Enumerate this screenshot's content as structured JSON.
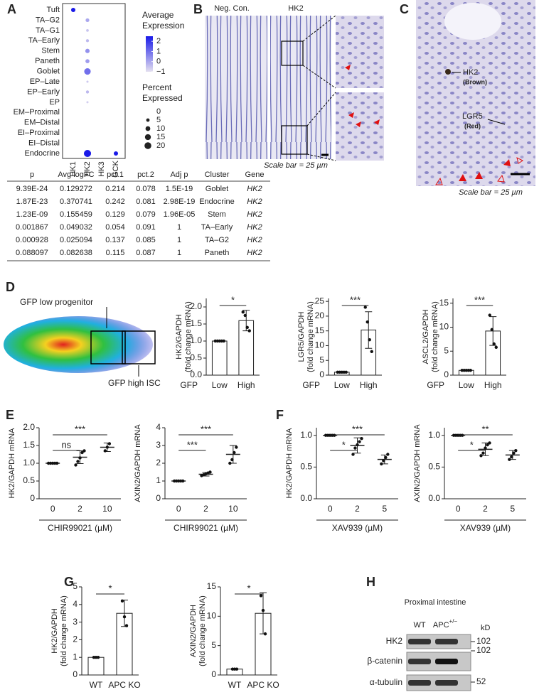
{
  "panels": {
    "A": {
      "letter": "A",
      "dotplot": {
        "clusters": [
          "Tuft",
          "TA–G2",
          "TA–G1",
          "TA–Early",
          "Stem",
          "Paneth",
          "Goblet",
          "EP–Late",
          "EP–Early",
          "EP",
          "EM–Proximal",
          "EM–Distal",
          "EI–Proximal",
          "EI–Distal",
          "Endocrine"
        ],
        "genes": [
          "HK1",
          "HK2",
          "HK3",
          "GCK"
        ],
        "percent": [
          [
            8,
            0,
            0,
            0
          ],
          [
            0,
            6,
            0,
            0
          ],
          [
            0,
            3,
            0,
            0
          ],
          [
            0,
            4,
            0,
            0
          ],
          [
            0,
            8,
            0,
            0
          ],
          [
            0,
            7,
            0,
            0
          ],
          [
            0,
            18,
            0,
            0
          ],
          [
            0,
            2,
            0,
            0
          ],
          [
            0,
            4,
            0,
            0
          ],
          [
            0,
            2,
            0,
            0
          ],
          [
            0,
            0,
            0,
            0
          ],
          [
            0,
            0,
            0,
            0
          ],
          [
            0,
            0,
            0,
            0
          ],
          [
            0,
            0,
            0,
            0
          ],
          [
            0,
            22,
            0,
            8
          ]
        ],
        "expression": [
          [
            2.5,
            -1,
            -1,
            -1
          ],
          [
            -1,
            0,
            -1,
            -1
          ],
          [
            -1,
            -0.5,
            -1,
            -1
          ],
          [
            -1,
            -0.3,
            -1,
            -1
          ],
          [
            -1,
            0.4,
            -1,
            -1
          ],
          [
            -1,
            0.2,
            -1,
            -1
          ],
          [
            -1,
            1,
            -1,
            -1
          ],
          [
            -1,
            -0.6,
            -1,
            -1
          ],
          [
            -1,
            -0.3,
            -1,
            -1
          ],
          [
            -1,
            -0.7,
            -1,
            -1
          ],
          [
            -1,
            -1,
            -1,
            -1
          ],
          [
            -1,
            -1,
            -1,
            -1
          ],
          [
            -1,
            -1,
            -1,
            -1
          ],
          [
            -1,
            -1,
            -1,
            -1
          ],
          [
            -1,
            2.5,
            -1,
            2.5
          ]
        ],
        "colors": {
          "low": "#e4e0f0",
          "high": "#1a1ae8"
        },
        "expression_title": [
          "Average",
          "Expression"
        ],
        "expression_ticks": [
          2,
          1,
          0,
          {
            "value": -1,
            "label": "−1"
          }
        ],
        "expression_lim": [
          -1,
          2.5
        ],
        "percent_title": [
          "Percent",
          "Expressed"
        ],
        "percent_ticks": [
          0,
          5,
          10,
          15,
          20
        ]
      },
      "table": {
        "header": [
          "p",
          "Avg logFC",
          "pct.1",
          "pct.2",
          "Adj p",
          "Cluster",
          "Gene"
        ],
        "rows": [
          [
            "9.39E-24",
            "0.129272",
            "0.214",
            "0.078",
            "1.5E-19",
            "Goblet",
            "HK2"
          ],
          [
            "1.87E-23",
            "0.370741",
            "0.242",
            "0.081",
            "2.98E-19",
            "Endocrine",
            "HK2"
          ],
          [
            "1.23E-09",
            "0.155459",
            "0.129",
            "0.079",
            "1.96E-05",
            "Stem",
            "HK2"
          ],
          [
            "0.001867",
            "0.049032",
            "0.054",
            "0.091",
            "1",
            "TA–Early",
            "HK2"
          ],
          [
            "0.000928",
            "0.025094",
            "0.137",
            "0.085",
            "1",
            "TA–G2",
            "HK2"
          ],
          [
            "0.088097",
            "0.082638",
            "0.115",
            "0.087",
            "1",
            "Paneth",
            "HK2"
          ]
        ]
      }
    },
    "B": {
      "letter": "B",
      "labels": [
        "Neg. Con.",
        "HK2"
      ],
      "scale": "Scale bar = 25 µm"
    },
    "C": {
      "letter": "C",
      "marker1": "HK2",
      "marker1_note": "(Brown)",
      "marker2": "LGR5",
      "marker2_note": "(Red)",
      "scale": "Scale bar = 25 µm"
    },
    "D": {
      "letter": "D",
      "gate_low": "GFP low progenitor",
      "gate_high": "GFP high ISC",
      "charts": [
        {
          "type": "bar",
          "ylabel": [
            "HK2/GAPDH",
            "(fold change mRNA)"
          ],
          "xprefix": "GFP",
          "categories": [
            "Low",
            "High"
          ],
          "values": [
            1.0,
            1.6
          ],
          "errors": [
            0.02,
            0.3
          ],
          "points": [
            [
              1,
              1,
              1,
              1,
              1
            ],
            [
              1.85,
              1.75,
              1.4,
              1.3
            ]
          ],
          "ylim": [
            0,
            2.25
          ],
          "yticks": [
            {
              "value": 0,
              "label": "0.0"
            },
            0.5,
            {
              "value": 1,
              "label": "1.0"
            },
            1.5,
            {
              "value": 2,
              "label": "2.0"
            }
          ],
          "significance": [
            "*"
          ]
        },
        {
          "type": "bar",
          "ylabel": [
            "LGR5/GAPDH",
            "(fold change mRNA)"
          ],
          "xprefix": "GFP",
          "categories": [
            "Low",
            "High"
          ],
          "values": [
            1.0,
            15.3
          ],
          "errors": [
            0.2,
            6.2
          ],
          "points": [
            [
              1,
              1,
              1,
              1,
              1
            ],
            [
              23,
              18,
              12,
              8
            ]
          ],
          "ylim": [
            0,
            26
          ],
          "yticks": [
            0,
            5,
            10,
            15,
            20,
            25
          ],
          "significance": [
            "***"
          ]
        },
        {
          "type": "bar",
          "ylabel": [
            "ASCL2/GAPDH",
            "(fold change mRNA)"
          ],
          "xprefix": "GFP",
          "categories": [
            "Low",
            "High"
          ],
          "values": [
            1.0,
            9.2
          ],
          "errors": [
            0.1,
            3.0
          ],
          "points": [
            [
              1,
              1,
              1,
              1,
              1
            ],
            [
              12.5,
              9.5,
              6.5,
              5.8
            ]
          ],
          "ylim": [
            0,
            16
          ],
          "yticks": [
            0,
            5,
            10,
            15
          ],
          "significance": [
            "***"
          ]
        }
      ]
    },
    "E": {
      "letter": "E",
      "charts": [
        {
          "type": "dotsd",
          "ylabel": [
            "HK2/GAPDH mRNA"
          ],
          "xlabel": "CHIR99021 (µM)",
          "categories": [
            "0",
            "2",
            "10"
          ],
          "values": [
            1.0,
            1.17,
            1.45
          ],
          "errors": [
            0.01,
            0.18,
            0.12
          ],
          "points": [
            [
              1,
              1,
              1,
              1,
              1
            ],
            [
              0.95,
              1.05,
              1.15,
              1.3,
              1.35
            ],
            [
              1.35,
              1.45,
              1.55
            ]
          ],
          "ylim": [
            0,
            2
          ],
          "yticks": [
            0,
            0.5,
            {
              "value": 1,
              "label": "1.0"
            },
            1.5,
            {
              "value": 2,
              "label": "2.0"
            }
          ],
          "significance": [
            "ns",
            "***"
          ]
        },
        {
          "type": "dotsd",
          "ylabel": [
            "AXIN2/GAPDH mRNA"
          ],
          "xlabel": "CHIR99021 (µM)",
          "categories": [
            "0",
            "2",
            "10"
          ],
          "values": [
            1.0,
            1.38,
            2.5
          ],
          "errors": [
            0.01,
            0.1,
            0.5
          ],
          "points": [
            [
              1,
              1,
              1,
              1,
              1
            ],
            [
              1.3,
              1.35,
              1.4,
              1.45,
              1.5
            ],
            [
              2.0,
              2.2,
              2.6,
              2.9
            ]
          ],
          "ylim": [
            0,
            4
          ],
          "yticks": [
            0,
            1,
            2,
            3,
            4
          ],
          "significance": [
            "***",
            "***"
          ]
        }
      ]
    },
    "F": {
      "letter": "F",
      "charts": [
        {
          "type": "dotsd",
          "ylabel": [
            "HK2/GAPDH mRNA"
          ],
          "xlabel": "XAV939 (µM)",
          "categories": [
            "0",
            "2",
            "5"
          ],
          "values": [
            1.0,
            0.84,
            0.62
          ],
          "errors": [
            0.01,
            0.12,
            0.07
          ],
          "points": [
            [
              1,
              1,
              1,
              1,
              1
            ],
            [
              0.7,
              0.8,
              0.85,
              0.9,
              0.95
            ],
            [
              0.55,
              0.6,
              0.65,
              0.7
            ]
          ],
          "ylim": [
            0,
            1.12
          ],
          "yticks": [
            {
              "value": 0,
              "label": "0.0"
            },
            0.5,
            {
              "value": 1,
              "label": "1.0"
            }
          ],
          "significance": [
            "*",
            "***"
          ]
        },
        {
          "type": "dotsd",
          "ylabel": [
            "AXIN2/GAPDH mRNA"
          ],
          "xlabel": "XAV939 (µM)",
          "categories": [
            "0",
            "2",
            "5"
          ],
          "values": [
            1.0,
            0.78,
            0.69
          ],
          "errors": [
            0.01,
            0.1,
            0.07
          ],
          "points": [
            [
              1,
              1,
              1,
              1,
              1
            ],
            [
              0.68,
              0.72,
              0.8,
              0.85,
              0.88
            ],
            [
              0.62,
              0.66,
              0.72,
              0.76
            ]
          ],
          "ylim": [
            0,
            1.12
          ],
          "yticks": [
            {
              "value": 0,
              "label": "0.0"
            },
            0.5,
            {
              "value": 1,
              "label": "1.0"
            }
          ],
          "significance": [
            "*",
            "**"
          ]
        }
      ]
    },
    "G": {
      "letter": "G",
      "charts": [
        {
          "type": "bar",
          "ylabel": [
            "HK2/GAPDH",
            "(fold change mRNA)"
          ],
          "categories": [
            "WT",
            "APC KO"
          ],
          "values": [
            1.0,
            3.5
          ],
          "errors": [
            0.02,
            0.75
          ],
          "points": [
            [
              1,
              1,
              1
            ],
            [
              4.2,
              3.3,
              2.8
            ]
          ],
          "ylim": [
            0,
            5
          ],
          "yticks": [
            0,
            1,
            2,
            3,
            4,
            5
          ],
          "significance": [
            "*"
          ]
        },
        {
          "type": "bar",
          "ylabel": [
            "AXIN2/GAPDH",
            "(fold change mRNA)"
          ],
          "categories": [
            "WT",
            "APC KO"
          ],
          "values": [
            1.0,
            10.5
          ],
          "errors": [
            0.05,
            3.5
          ],
          "points": [
            [
              1,
              1,
              1
            ],
            [
              13.5,
              11,
              7
            ]
          ],
          "ylim": [
            0,
            15
          ],
          "yticks": [
            0,
            5,
            10,
            15
          ],
          "significance": [
            "*"
          ]
        }
      ]
    },
    "H": {
      "letter": "H",
      "title": "Proximal intestine",
      "lanes": [
        {
          "name": "WT"
        },
        {
          "name": "APC",
          "sup": "+/−"
        }
      ],
      "unit": "kD",
      "bands": [
        "HK2",
        "β-catenin",
        "α-tubulin"
      ],
      "markers": [
        "102",
        "102",
        "52"
      ]
    }
  }
}
